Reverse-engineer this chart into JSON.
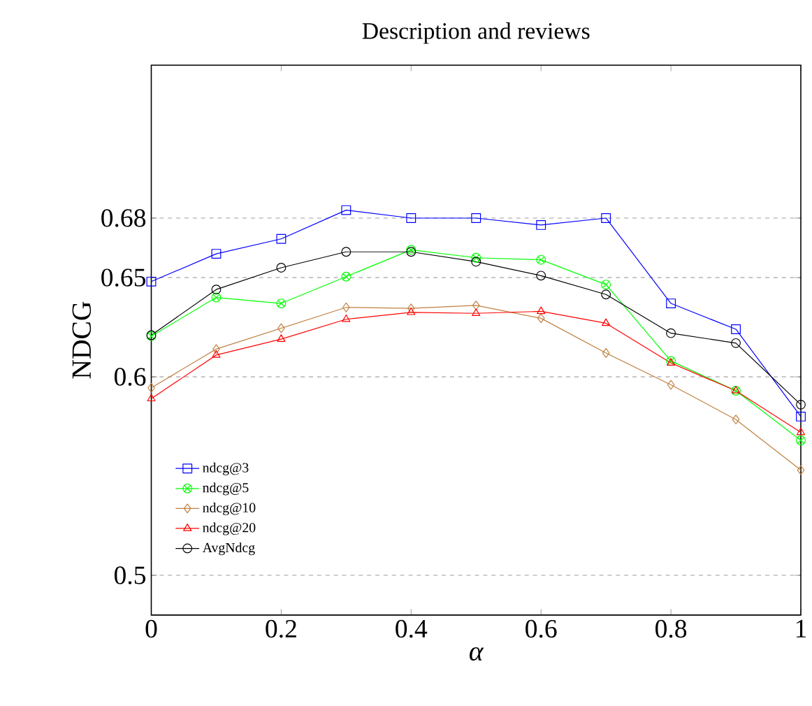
{
  "chart_data": {
    "type": "line",
    "title": "Description and reviews",
    "xlabel": "α",
    "ylabel": "NDCG",
    "x": [
      0,
      0.1,
      0.2,
      0.3,
      0.4,
      0.5,
      0.6,
      0.7,
      0.8,
      0.9,
      1
    ],
    "series": [
      {
        "name": "ndcg@3",
        "color": "#0000ff",
        "marker": "square",
        "values": [
          0.648,
          0.662,
          0.6695,
          0.684,
          0.68,
          0.68,
          0.6765,
          0.68,
          0.637,
          0.624,
          0.58
        ]
      },
      {
        "name": "ndcg@5",
        "color": "#00ff00",
        "marker": "cross",
        "values": [
          0.6205,
          0.64,
          0.637,
          0.6505,
          0.664,
          0.66,
          0.659,
          0.6465,
          0.608,
          0.593,
          0.568
        ]
      },
      {
        "name": "ndcg@10",
        "color": "#bf8040",
        "marker": "diamond",
        "values": [
          0.5945,
          0.614,
          0.6245,
          0.635,
          0.6345,
          0.636,
          0.6295,
          0.612,
          0.596,
          0.5785,
          0.553
        ]
      },
      {
        "name": "ndcg@20",
        "color": "#ff0000",
        "marker": "triangle",
        "values": [
          0.589,
          0.611,
          0.619,
          0.629,
          0.6325,
          0.632,
          0.633,
          0.627,
          0.607,
          0.593,
          0.572
        ]
      },
      {
        "name": "AvgNdcg",
        "color": "#000000",
        "marker": "circle",
        "values": [
          0.621,
          0.644,
          0.655,
          0.663,
          0.663,
          0.658,
          0.651,
          0.6415,
          0.622,
          0.617,
          0.586
        ]
      }
    ],
    "xlim": [
      0,
      1
    ],
    "ylim": [
      0.48,
      0.757
    ],
    "xticks": [
      0,
      0.2,
      0.4,
      0.6,
      0.8,
      1
    ],
    "yticks": [
      0.5,
      0.6,
      0.65,
      0.68
    ],
    "grid": "y",
    "legend": "bottom left"
  }
}
